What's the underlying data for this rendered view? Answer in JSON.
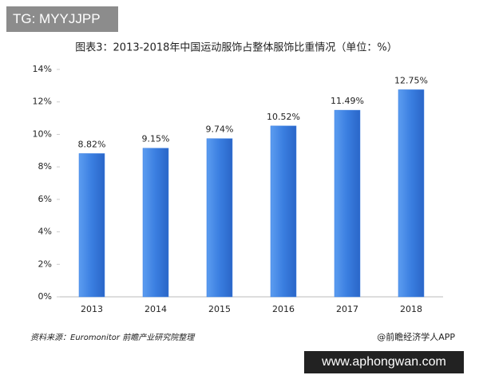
{
  "badge": "TG: MYYJJPP",
  "watermark": "www.aphongwan.com",
  "chart_data": {
    "type": "bar",
    "title": "图表3：2013-2018年中国运动服饰占整体服饰比重情况（单位：%）",
    "categories": [
      "2013",
      "2014",
      "2015",
      "2016",
      "2017",
      "2018"
    ],
    "values": [
      8.82,
      9.15,
      9.74,
      10.52,
      11.49,
      12.75
    ],
    "value_labels": [
      "8.82%",
      "9.15%",
      "9.74%",
      "10.52%",
      "11.49%",
      "12.75%"
    ],
    "color": "#3a7ee0",
    "ylim": [
      0,
      14
    ],
    "yticks": [
      {
        "value": 0,
        "label": "0%"
      },
      {
        "value": 2,
        "label": "2%"
      },
      {
        "value": 4,
        "label": "4%"
      },
      {
        "value": 6,
        "label": "6%"
      },
      {
        "value": 8,
        "label": "8%"
      },
      {
        "value": 10,
        "label": "10%"
      },
      {
        "value": 12,
        "label": "12%"
      },
      {
        "value": 14,
        "label": "14%"
      }
    ],
    "grid": false,
    "source": "资料来源：Euromonitor 前瞻产业研究院整理",
    "credit": "@前瞻经济学人APP"
  }
}
